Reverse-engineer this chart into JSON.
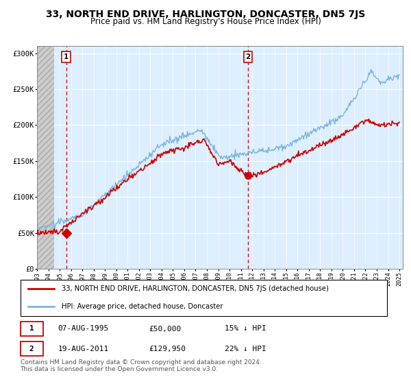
{
  "title": "33, NORTH END DRIVE, HARLINGTON, DONCASTER, DN5 7JS",
  "subtitle": "Price paid vs. HM Land Registry's House Price Index (HPI)",
  "ylabel_ticks": [
    "£0",
    "£50K",
    "£100K",
    "£150K",
    "£200K",
    "£250K",
    "£300K"
  ],
  "ylim": [
    0,
    310000
  ],
  "yticks": [
    0,
    50000,
    100000,
    150000,
    200000,
    250000,
    300000
  ],
  "sale1_date": "07-AUG-1995",
  "sale1_price": 50000,
  "sale1_year": 1995.58,
  "sale1_label": "1",
  "sale1_pct": "15% ↓ HPI",
  "sale2_date": "19-AUG-2011",
  "sale2_price": 129950,
  "sale2_year": 2011.62,
  "sale2_label": "2",
  "sale2_pct": "22% ↓ HPI",
  "legend_line1": "33, NORTH END DRIVE, HARLINGTON, DONCASTER, DN5 7JS (detached house)",
  "legend_line2": "HPI: Average price, detached house, Doncaster",
  "footer": "Contains HM Land Registry data © Crown copyright and database right 2024.\nThis data is licensed under the Open Government Licence v3.0.",
  "hpi_color": "#7ab4e0",
  "price_color": "#cc0000",
  "dashed_line_color": "#cc0000",
  "bg_color": "#ddeeff",
  "sale_marker_color": "#cc0000",
  "title_fontsize": 10,
  "subtitle_fontsize": 8.5,
  "axis_fontsize": 7.5,
  "xlim_start": 1993,
  "xlim_end": 2025.3
}
